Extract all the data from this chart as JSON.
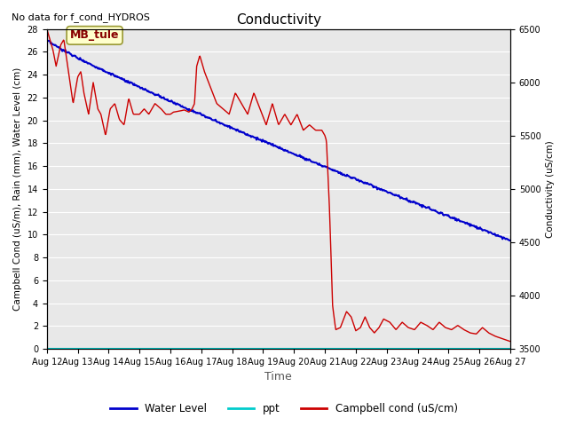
{
  "title": "Conductivity",
  "top_left_text": "No data for f_cond_HYDROS",
  "xlabel": "Time",
  "ylabel_left": "Campbell Cond (uS/m), Rain (mm), Water Level (cm)",
  "ylabel_right": "Conductivity (uS/cm)",
  "xlim": [
    0,
    15
  ],
  "ylim_left": [
    0,
    28
  ],
  "ylim_right": [
    3500,
    6500
  ],
  "plot_bg_color": "#e8e8e8",
  "legend_labels": [
    "Water Level",
    "ppt",
    "Campbell cond (uS/cm)"
  ],
  "legend_colors": [
    "#0000cc",
    "#00cccc",
    "#cc0000"
  ],
  "box_label": "MB_tule",
  "box_bg": "#ffffcc",
  "box_border": "#999933",
  "xtick_labels": [
    "Aug 12",
    "Aug 13",
    "Aug 14",
    "Aug 15",
    "Aug 16",
    "Aug 17",
    "Aug 18",
    "Aug 19",
    "Aug 20",
    "Aug 21",
    "Aug 22",
    "Aug 23",
    "Aug 24",
    "Aug 25",
    "Aug 26",
    "Aug 27"
  ],
  "yticks_left": [
    0,
    2,
    4,
    6,
    8,
    10,
    12,
    14,
    16,
    18,
    20,
    22,
    24,
    26,
    28
  ],
  "yticks_right": [
    3500,
    4000,
    4500,
    5000,
    5500,
    6000,
    6500
  ]
}
